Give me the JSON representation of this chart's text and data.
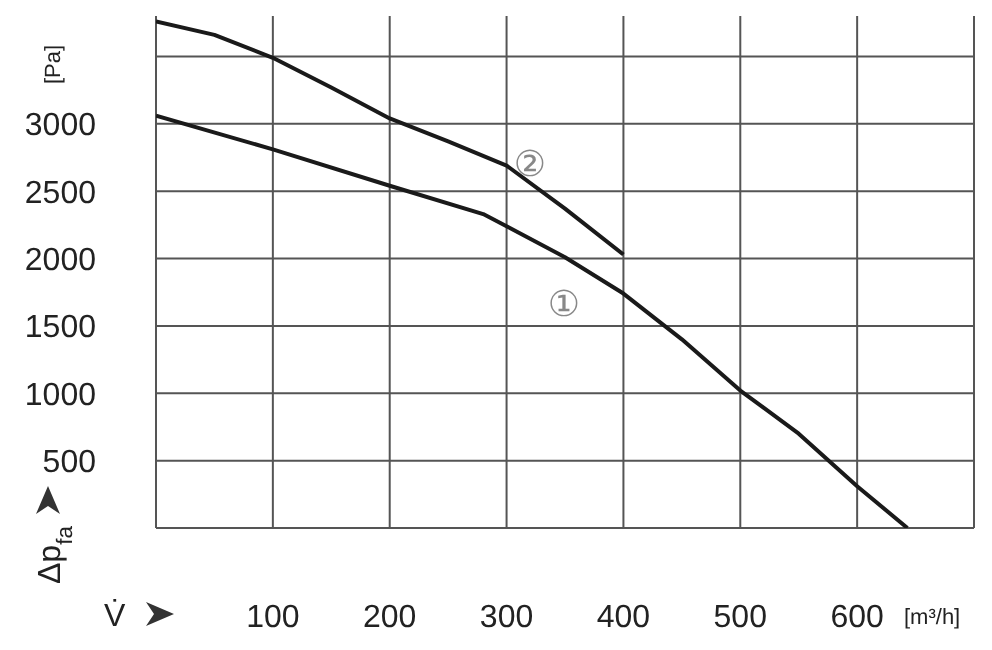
{
  "chart_data": {
    "type": "line",
    "xlabel": "V̇",
    "ylabel": "Δp$_{fa}$",
    "annotations": [
      "[Pa]",
      "[m³/h]",
      "①",
      "②"
    ],
    "xlim": [
      0,
      700
    ],
    "xticks": [
      {
        "value": 0,
        "label": null
      },
      100,
      200,
      300,
      400,
      500,
      600,
      {
        "value": 700,
        "label": null
      }
    ],
    "ylim": [
      0,
      3800
    ],
    "yticks": [
      {
        "value": 0,
        "label": null
      },
      500,
      1000,
      1500,
      2000,
      2500,
      3000,
      {
        "value": 3500,
        "label": null
      }
    ],
    "grid": true,
    "legend": false,
    "marker": "none",
    "line_style": "solid",
    "series": [
      {
        "color": "#1a1a1a",
        "x": [
          0,
          100,
          200,
          280,
          300,
          350,
          400,
          450,
          500,
          550,
          600,
          643
        ],
        "values": [
          3060,
          2810,
          2540,
          2330,
          2240,
          2010,
          1740,
          1400,
          1020,
          700,
          310,
          0
        ]
      },
      {
        "color": "#1a1a1a",
        "x": [
          0,
          50,
          100,
          150,
          200,
          250,
          300,
          350,
          400
        ],
        "values": [
          3760,
          3660,
          3490,
          3270,
          3040,
          2870,
          2690,
          2370,
          2030
        ]
      }
    ]
  }
}
